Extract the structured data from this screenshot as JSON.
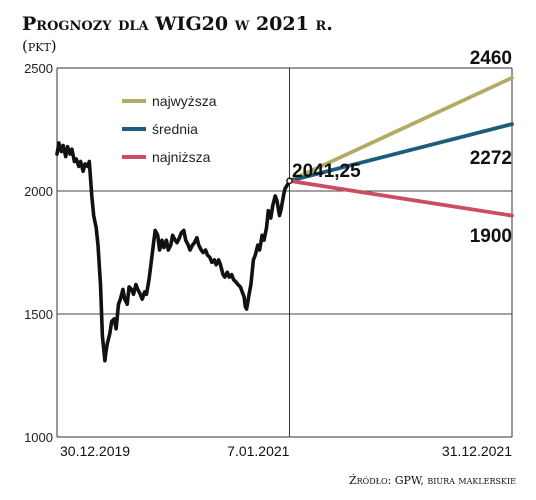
{
  "chart_data": {
    "type": "line",
    "title": "Prognozy dla WIG20 w 2021 r.",
    "unit_label": "(pkt)",
    "source": "Źródło: GPW, biura maklerskie",
    "ylim": [
      1000,
      2500
    ],
    "y_ticks": [
      "2500",
      "2000",
      "1500",
      "1000"
    ],
    "x_tick_labels": [
      "30.12.2019",
      "7.01.2021",
      "31.12.2021"
    ],
    "x_range": [
      "2019-12-30",
      "2021-12-31"
    ],
    "grid": true,
    "last_value": {
      "date": "2021-01-07",
      "value": 2041.25,
      "label": "2041,25"
    },
    "series": [
      {
        "name": "WIG20",
        "color": "#111111",
        "points": [
          [
            "2019-12-30",
            2150
          ],
          [
            "2020-01-02",
            2195
          ],
          [
            "2020-01-06",
            2160
          ],
          [
            "2020-01-09",
            2185
          ],
          [
            "2020-01-13",
            2140
          ],
          [
            "2020-01-16",
            2180
          ],
          [
            "2020-01-20",
            2150
          ],
          [
            "2020-01-23",
            2170
          ],
          [
            "2020-01-27",
            2120
          ],
          [
            "2020-01-30",
            2130
          ],
          [
            "2020-02-03",
            2100
          ],
          [
            "2020-02-06",
            2120
          ],
          [
            "2020-02-10",
            2080
          ],
          [
            "2020-02-13",
            2110
          ],
          [
            "2020-02-17",
            2100
          ],
          [
            "2020-02-20",
            2120
          ],
          [
            "2020-02-24",
            1980
          ],
          [
            "2020-02-27",
            1900
          ],
          [
            "2020-03-02",
            1850
          ],
          [
            "2020-03-05",
            1780
          ],
          [
            "2020-03-09",
            1620
          ],
          [
            "2020-03-12",
            1410
          ],
          [
            "2020-03-16",
            1310
          ],
          [
            "2020-03-18",
            1350
          ],
          [
            "2020-03-20",
            1380
          ],
          [
            "2020-03-24",
            1420
          ],
          [
            "2020-03-27",
            1470
          ],
          [
            "2020-03-31",
            1480
          ],
          [
            "2020-04-03",
            1440
          ],
          [
            "2020-04-07",
            1540
          ],
          [
            "2020-04-10",
            1560
          ],
          [
            "2020-04-14",
            1600
          ],
          [
            "2020-04-17",
            1560
          ],
          [
            "2020-04-21",
            1540
          ],
          [
            "2020-04-24",
            1610
          ],
          [
            "2020-04-28",
            1600
          ],
          [
            "2020-05-01",
            1580
          ],
          [
            "2020-05-05",
            1620
          ],
          [
            "2020-05-08",
            1600
          ],
          [
            "2020-05-12",
            1580
          ],
          [
            "2020-05-15",
            1560
          ],
          [
            "2020-05-19",
            1590
          ],
          [
            "2020-05-22",
            1580
          ],
          [
            "2020-05-26",
            1640
          ],
          [
            "2020-05-29",
            1700
          ],
          [
            "2020-06-02",
            1780
          ],
          [
            "2020-06-05",
            1840
          ],
          [
            "2020-06-09",
            1820
          ],
          [
            "2020-06-12",
            1760
          ],
          [
            "2020-06-16",
            1800
          ],
          [
            "2020-06-19",
            1770
          ],
          [
            "2020-06-23",
            1800
          ],
          [
            "2020-06-26",
            1760
          ],
          [
            "2020-06-30",
            1780
          ],
          [
            "2020-07-03",
            1820
          ],
          [
            "2020-07-07",
            1800
          ],
          [
            "2020-07-10",
            1790
          ],
          [
            "2020-07-14",
            1810
          ],
          [
            "2020-07-17",
            1830
          ],
          [
            "2020-07-21",
            1840
          ],
          [
            "2020-07-24",
            1800
          ],
          [
            "2020-07-28",
            1780
          ],
          [
            "2020-07-31",
            1760
          ],
          [
            "2020-08-04",
            1780
          ],
          [
            "2020-08-07",
            1790
          ],
          [
            "2020-08-11",
            1810
          ],
          [
            "2020-08-14",
            1780
          ],
          [
            "2020-08-18",
            1760
          ],
          [
            "2020-08-21",
            1750
          ],
          [
            "2020-08-25",
            1760
          ],
          [
            "2020-08-28",
            1740
          ],
          [
            "2020-09-01",
            1730
          ],
          [
            "2020-09-04",
            1710
          ],
          [
            "2020-09-08",
            1720
          ],
          [
            "2020-09-11",
            1700
          ],
          [
            "2020-09-15",
            1720
          ],
          [
            "2020-09-18",
            1700
          ],
          [
            "2020-09-22",
            1660
          ],
          [
            "2020-09-25",
            1650
          ],
          [
            "2020-09-29",
            1670
          ],
          [
            "2020-10-02",
            1650
          ],
          [
            "2020-10-06",
            1660
          ],
          [
            "2020-10-09",
            1640
          ],
          [
            "2020-10-13",
            1630
          ],
          [
            "2020-10-16",
            1620
          ],
          [
            "2020-10-20",
            1610
          ],
          [
            "2020-10-23",
            1590
          ],
          [
            "2020-10-26",
            1570
          ],
          [
            "2020-10-28",
            1530
          ],
          [
            "2020-10-30",
            1520
          ],
          [
            "2020-11-03",
            1580
          ],
          [
            "2020-11-06",
            1620
          ],
          [
            "2020-11-10",
            1720
          ],
          [
            "2020-11-13",
            1740
          ],
          [
            "2020-11-17",
            1780
          ],
          [
            "2020-11-20",
            1760
          ],
          [
            "2020-11-24",
            1820
          ],
          [
            "2020-11-27",
            1800
          ],
          [
            "2020-12-01",
            1850
          ],
          [
            "2020-12-04",
            1920
          ],
          [
            "2020-12-08",
            1890
          ],
          [
            "2020-12-11",
            1940
          ],
          [
            "2020-12-15",
            1980
          ],
          [
            "2020-12-18",
            1960
          ],
          [
            "2020-12-22",
            1900
          ],
          [
            "2020-12-24",
            1920
          ],
          [
            "2020-12-29",
            1990
          ],
          [
            "2020-12-31",
            2010
          ],
          [
            "2021-01-05",
            2030
          ],
          [
            "2021-01-07",
            2041.25
          ]
        ]
      },
      {
        "name": "najwyższa",
        "color": "#b2ac63",
        "points": [
          [
            "2021-01-07",
            2041.25
          ],
          [
            "2021-12-31",
            2460
          ]
        ],
        "end_label": "2460"
      },
      {
        "name": "średnia",
        "color": "#1e5d7a",
        "points": [
          [
            "2021-01-07",
            2041.25
          ],
          [
            "2021-12-31",
            2272
          ]
        ],
        "end_label": "2272"
      },
      {
        "name": "najniższa",
        "color": "#cc4c60",
        "points": [
          [
            "2021-01-07",
            2041.25
          ],
          [
            "2021-12-31",
            1900
          ]
        ],
        "end_label": "1900"
      }
    ],
    "legend": [
      "najwyższa",
      "średnia",
      "najniższa"
    ]
  }
}
